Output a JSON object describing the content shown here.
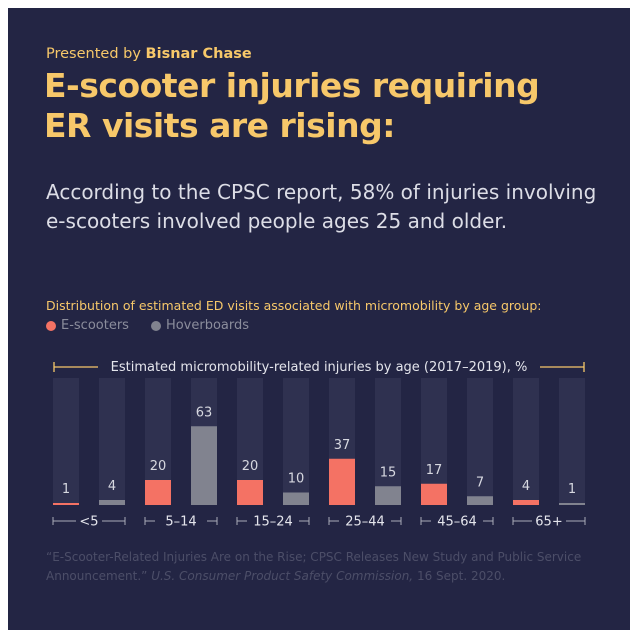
{
  "header": {
    "presented_prefix": "Presented by ",
    "presented_brand": "Bisnar Chase",
    "headline_line1": "E-scooter injuries requiring",
    "headline_line2": "ER visits are rising:",
    "subtitle": "According to the CPSC report, 58% of injuries involving e-scooters involved people ages 25 and older."
  },
  "chart_intro": "Distribution of estimated ED visits associated with micromobility by age group:",
  "colors": {
    "escooter": "#f47264",
    "hoverboard": "#81838f",
    "track": "#2f3150",
    "accent": "#f7c86a",
    "background": "#232544"
  },
  "chart_data": {
    "type": "bar",
    "title": "Estimated micromobility-related injuries by age (2017–2019), %",
    "categories": [
      "<5",
      "5–14",
      "15–24",
      "25–44",
      "45–64",
      "65+"
    ],
    "series": [
      {
        "name": "E-scooters",
        "values": [
          1,
          20,
          20,
          37,
          17,
          4
        ]
      },
      {
        "name": "Hoverboards",
        "values": [
          4,
          63,
          10,
          15,
          7,
          1
        ]
      }
    ],
    "ylim": [
      0,
      100
    ],
    "legend": "top-left",
    "grid": false
  },
  "source": {
    "part1": "“E-Scooter-Related Injuries Are on the Rise; CPSC Releases New Study and Public Service Announcement.” ",
    "publisher": "U.S. Consumer Product Safety Commission,",
    "date": " 16 Sept. 2020."
  }
}
